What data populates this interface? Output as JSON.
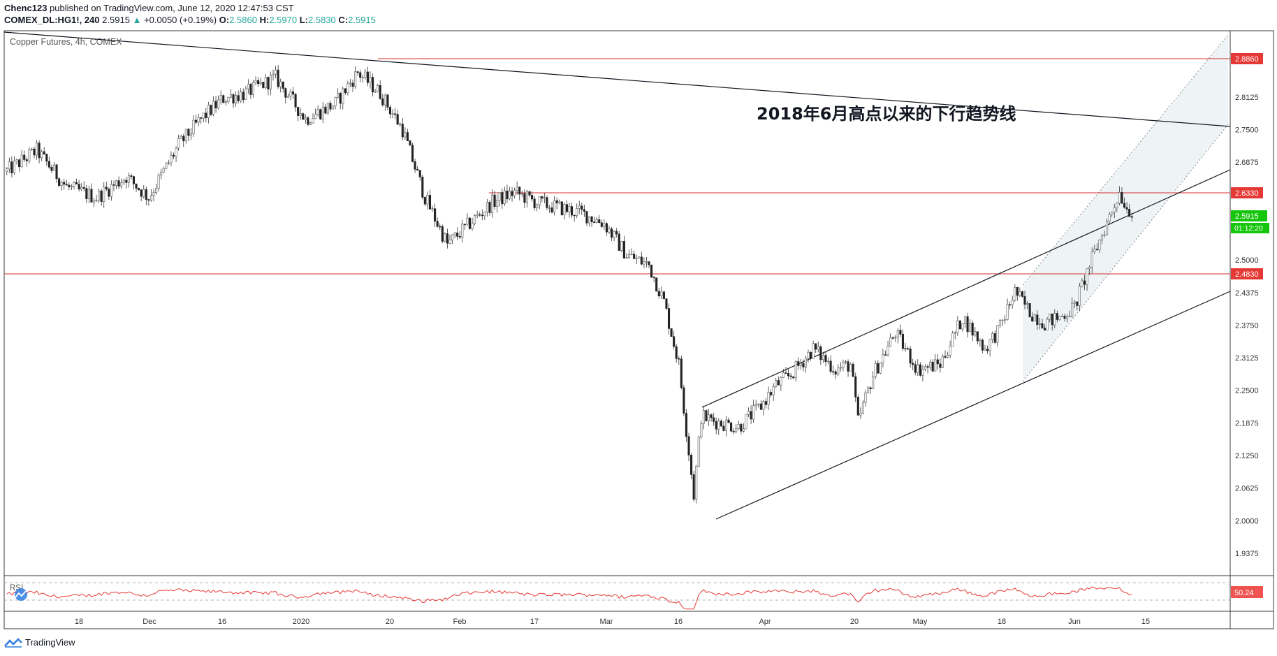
{
  "header": {
    "publisher": "Chenc123",
    "published_text": "published on TradingView.com, June 12, 2020 12:47:53 CST",
    "symbol": "COMEX_DL:HG1!, 240",
    "last": "2.5915",
    "change_arrow": "▲",
    "change": "+0.0050 (+0.19%)",
    "o_label": "O:",
    "o_value": "2.5860",
    "h_label": "H:",
    "h_value": "2.5970",
    "l_label": "L:",
    "l_value": "2.5830",
    "c_label": "C:",
    "c_value": "2.5915"
  },
  "footer": {
    "brand": "TradingView"
  },
  "colors": {
    "up": "#26a69a",
    "down": "#ef5350",
    "level_line": "#d32f2f",
    "price_tag": "#16c60c",
    "rsi_line": "#e53935",
    "channel_fill": "#eef4f6"
  },
  "chart_data": {
    "type": "candlestick",
    "title": "Copper Futures, 4h, COMEX",
    "y_ticks": [
      "2.8125",
      "2.7500",
      "2.6875",
      "2.5000",
      "2.4375",
      "2.3750",
      "2.3125",
      "2.2500",
      "2.1875",
      "2.1250",
      "2.0625",
      "2.0000",
      "1.9375"
    ],
    "ylim": [
      1.9375,
      2.886
    ],
    "x_ticks": [
      "18",
      "Dec",
      "16",
      "2020",
      "20",
      "Feb",
      "17",
      "Mar",
      "16",
      "Apr",
      "20",
      "May",
      "18",
      "Jun",
      "15"
    ],
    "price_levels": [
      {
        "label": "2.8860",
        "value": 2.886
      },
      {
        "label": "2.6330",
        "value": 2.633
      },
      {
        "label": "2.4830",
        "value": 2.483
      }
    ],
    "current_price": {
      "label": "2.5915",
      "value": 2.5915,
      "countdown": "01:12:20"
    },
    "annotation": "2018年6月高点以来的下行趋势线",
    "anchors": [
      [
        0,
        2.67
      ],
      [
        4,
        2.71
      ],
      [
        8,
        2.64
      ],
      [
        12,
        2.62
      ],
      [
        16,
        2.66
      ],
      [
        19,
        2.62
      ],
      [
        23,
        2.72
      ],
      [
        26,
        2.77
      ],
      [
        29,
        2.81
      ],
      [
        32,
        2.82
      ],
      [
        36,
        2.85
      ],
      [
        40,
        2.77
      ],
      [
        44,
        2.8
      ],
      [
        47,
        2.86
      ],
      [
        50,
        2.82
      ],
      [
        53,
        2.75
      ],
      [
        56,
        2.62
      ],
      [
        59,
        2.53
      ],
      [
        62,
        2.57
      ],
      [
        65,
        2.61
      ],
      [
        68,
        2.63
      ],
      [
        71,
        2.61
      ],
      [
        74,
        2.6
      ],
      [
        77,
        2.59
      ],
      [
        80,
        2.57
      ],
      [
        83,
        2.51
      ],
      [
        86,
        2.49
      ],
      [
        88,
        2.42
      ],
      [
        90,
        2.3
      ],
      [
        92,
        2.05
      ],
      [
        93,
        2.2
      ],
      [
        95,
        2.19
      ],
      [
        98,
        2.18
      ],
      [
        101,
        2.22
      ],
      [
        103,
        2.26
      ],
      [
        105,
        2.28
      ],
      [
        108,
        2.33
      ],
      [
        111,
        2.29
      ],
      [
        113,
        2.3
      ],
      [
        114,
        2.19
      ],
      [
        116,
        2.28
      ],
      [
        119,
        2.36
      ],
      [
        122,
        2.29
      ],
      [
        125,
        2.3
      ],
      [
        128,
        2.39
      ],
      [
        131,
        2.33
      ],
      [
        133,
        2.37
      ],
      [
        135,
        2.44
      ],
      [
        137,
        2.4
      ],
      [
        139,
        2.38
      ],
      [
        141,
        2.39
      ],
      [
        143,
        2.41
      ],
      [
        145,
        2.49
      ],
      [
        147,
        2.56
      ],
      [
        149,
        2.63
      ],
      [
        150,
        2.6
      ],
      [
        151,
        2.59
      ]
    ],
    "rsi": {
      "label": "RSI",
      "value_label": "50.24",
      "overbought": 70,
      "oversold": 30,
      "ylim": [
        20,
        80
      ]
    }
  }
}
